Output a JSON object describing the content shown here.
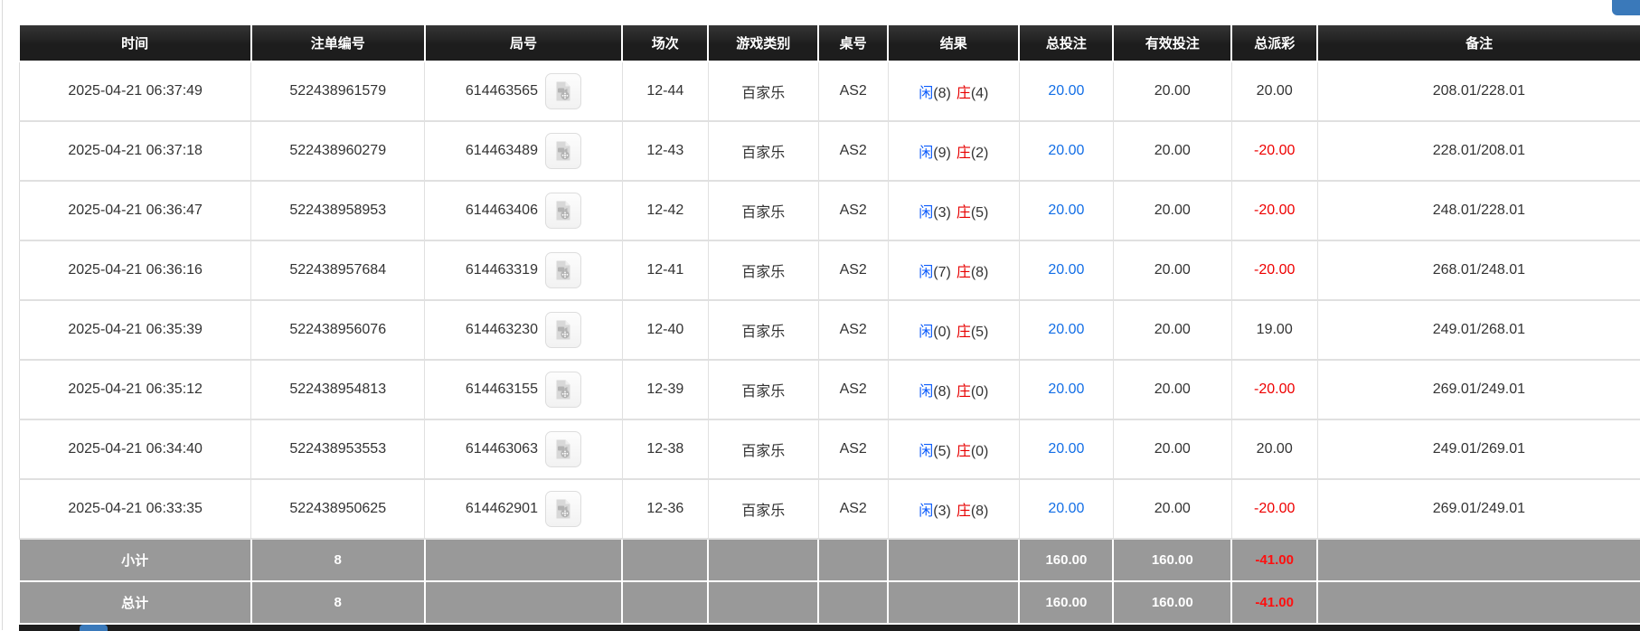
{
  "colors": {
    "header_bg": "#1d1d1d",
    "summary_bg": "#999999",
    "accent_blue": "#146fe6",
    "player_blue": "#0b5bfb",
    "banker_red": "#e60000",
    "neg_red": "#ee0000",
    "summary_neg_red": "#ff0f0f",
    "frag_blue": "#3a79ba"
  },
  "icons": {
    "video_replay": "video-replay-icon"
  },
  "table": {
    "columns": [
      "时间",
      "注单编号",
      "局号",
      "场次",
      "游戏类别",
      "桌号",
      "结果",
      "总投注",
      "有效投注",
      "总派彩",
      "备注"
    ],
    "rows": [
      {
        "time": "2025-04-21 06:37:49",
        "bet_id": "522438961579",
        "round_id": "614463565",
        "session": "12-44",
        "game_type": "百家乐",
        "table_no": "AS2",
        "result": {
          "player": "闲",
          "player_score": "(8)",
          "banker": "庄",
          "banker_score": "(4)"
        },
        "total_bet": "20.00",
        "valid_bet": "20.00",
        "payout": "20.00",
        "remark": "208.01/228.01"
      },
      {
        "time": "2025-04-21 06:37:18",
        "bet_id": "522438960279",
        "round_id": "614463489",
        "session": "12-43",
        "game_type": "百家乐",
        "table_no": "AS2",
        "result": {
          "player": "闲",
          "player_score": "(9)",
          "banker": "庄",
          "banker_score": "(2)"
        },
        "total_bet": "20.00",
        "valid_bet": "20.00",
        "payout": "-20.00",
        "remark": "228.01/208.01"
      },
      {
        "time": "2025-04-21 06:36:47",
        "bet_id": "522438958953",
        "round_id": "614463406",
        "session": "12-42",
        "game_type": "百家乐",
        "table_no": "AS2",
        "result": {
          "player": "闲",
          "player_score": "(3)",
          "banker": "庄",
          "banker_score": "(5)"
        },
        "total_bet": "20.00",
        "valid_bet": "20.00",
        "payout": "-20.00",
        "remark": "248.01/228.01"
      },
      {
        "time": "2025-04-21 06:36:16",
        "bet_id": "522438957684",
        "round_id": "614463319",
        "session": "12-41",
        "game_type": "百家乐",
        "table_no": "AS2",
        "result": {
          "player": "闲",
          "player_score": "(7)",
          "banker": "庄",
          "banker_score": "(8)"
        },
        "total_bet": "20.00",
        "valid_bet": "20.00",
        "payout": "-20.00",
        "remark": "268.01/248.01"
      },
      {
        "time": "2025-04-21 06:35:39",
        "bet_id": "522438956076",
        "round_id": "614463230",
        "session": "12-40",
        "game_type": "百家乐",
        "table_no": "AS2",
        "result": {
          "player": "闲",
          "player_score": "(0)",
          "banker": "庄",
          "banker_score": "(5)"
        },
        "total_bet": "20.00",
        "valid_bet": "20.00",
        "payout": "19.00",
        "remark": "249.01/268.01"
      },
      {
        "time": "2025-04-21 06:35:12",
        "bet_id": "522438954813",
        "round_id": "614463155",
        "session": "12-39",
        "game_type": "百家乐",
        "table_no": "AS2",
        "result": {
          "player": "闲",
          "player_score": "(8)",
          "banker": "庄",
          "banker_score": "(0)"
        },
        "total_bet": "20.00",
        "valid_bet": "20.00",
        "payout": "-20.00",
        "remark": "269.01/249.01"
      },
      {
        "time": "2025-04-21 06:34:40",
        "bet_id": "522438953553",
        "round_id": "614463063",
        "session": "12-38",
        "game_type": "百家乐",
        "table_no": "AS2",
        "result": {
          "player": "闲",
          "player_score": "(5)",
          "banker": "庄",
          "banker_score": "(0)"
        },
        "total_bet": "20.00",
        "valid_bet": "20.00",
        "payout": "20.00",
        "remark": "249.01/269.01"
      },
      {
        "time": "2025-04-21 06:33:35",
        "bet_id": "522438950625",
        "round_id": "614462901",
        "session": "12-36",
        "game_type": "百家乐",
        "table_no": "AS2",
        "result": {
          "player": "闲",
          "player_score": "(3)",
          "banker": "庄",
          "banker_score": "(8)"
        },
        "total_bet": "20.00",
        "valid_bet": "20.00",
        "payout": "-20.00",
        "remark": "269.01/249.01"
      }
    ],
    "subtotal": {
      "label": "小计",
      "count": "8",
      "total_bet": "160.00",
      "valid_bet": "160.00",
      "payout": "-41.00"
    },
    "total": {
      "label": "总计",
      "count": "8",
      "total_bet": "160.00",
      "valid_bet": "160.00",
      "payout": "-41.00"
    }
  }
}
